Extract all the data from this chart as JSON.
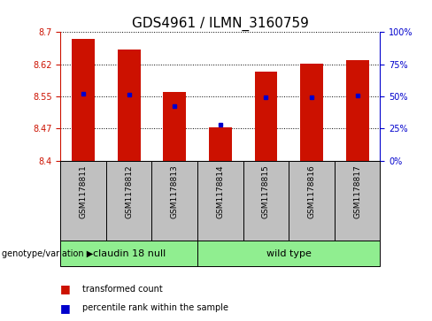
{
  "title": "GDS4961 / ILMN_3160759",
  "samples": [
    "GSM1178811",
    "GSM1178812",
    "GSM1178813",
    "GSM1178814",
    "GSM1178815",
    "GSM1178816",
    "GSM1178817"
  ],
  "bar_tops": [
    8.685,
    8.66,
    8.56,
    8.478,
    8.608,
    8.627,
    8.635
  ],
  "blue_dots": [
    8.555,
    8.553,
    8.528,
    8.483,
    8.547,
    8.547,
    8.552
  ],
  "ymin": 8.4,
  "ymax": 8.7,
  "yticks_left": [
    8.4,
    8.475,
    8.55,
    8.625,
    8.7
  ],
  "yticks_right": [
    0,
    25,
    50,
    75,
    100
  ],
  "bar_color": "#cc1100",
  "dot_color": "#0000cc",
  "group1": {
    "label": "claudin 18 null",
    "indices": [
      0,
      1,
      2
    ],
    "color": "#90ee90"
  },
  "group2": {
    "label": "wild type",
    "indices": [
      3,
      4,
      5,
      6
    ],
    "color": "#90ee90"
  },
  "genotype_label": "genotype/variation",
  "legend1": "transformed count",
  "legend2": "percentile rank within the sample",
  "bar_width": 0.5,
  "group_bg": "#c0c0c0",
  "title_fontsize": 11
}
